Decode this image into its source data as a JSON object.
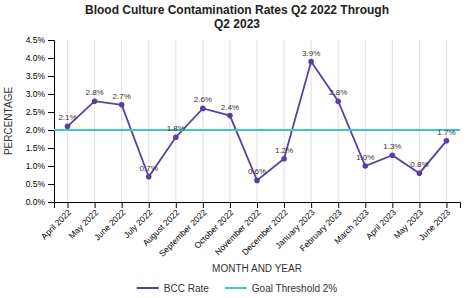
{
  "chart_data": {
    "type": "line",
    "title": "Blood Culture Contamination Rates Q2 2022 Through\nQ2 2023",
    "x_label": "MONTH AND YEAR",
    "y_label": "PERCENTAGE",
    "categories": [
      "April 2022",
      "May 2022",
      "June 2022",
      "July 2022",
      "August 2022",
      "September 2022",
      "October 2022",
      "November 2022",
      "December 2022",
      "January 2023",
      "February 2023",
      "March 2023",
      "April 2023",
      "May 2023",
      "June 2023"
    ],
    "series": [
      {
        "name": "BCC Rate",
        "color": "#5B3FA0",
        "marker": "circle",
        "values": [
          2.1,
          2.8,
          2.7,
          0.7,
          1.8,
          2.6,
          2.4,
          0.6,
          1.2,
          3.9,
          2.8,
          1.0,
          1.3,
          0.8,
          1.7
        ],
        "value_labels": [
          "2.1%",
          "2.8%",
          "2.7%",
          "0.7%",
          "1.8%",
          "2.6%",
          "2.4%",
          "0.6%",
          "1.2%",
          "3.9%",
          "2.8%",
          "1.0%",
          "1.3%",
          "0.8%",
          "1.7%"
        ]
      },
      {
        "name": "Goal Threshold 2%",
        "color": "#40C8C8",
        "type": "hline",
        "value": 2.0
      }
    ],
    "ylim": [
      0.0,
      4.5
    ],
    "yticks": [
      {
        "value": 0.0,
        "label": "0.0%"
      },
      {
        "value": 0.5,
        "label": "0.5%"
      },
      {
        "value": 1.0,
        "label": "1.0%"
      },
      {
        "value": 1.5,
        "label": "1.5%"
      },
      {
        "value": 2.0,
        "label": "2.0%"
      },
      {
        "value": 2.5,
        "label": "2.5%"
      },
      {
        "value": 3.0,
        "label": "3.0%"
      },
      {
        "value": 3.5,
        "label": "3.5%"
      },
      {
        "value": 4.0,
        "label": "4.0%"
      },
      {
        "value": 4.5,
        "label": "4.5%"
      }
    ],
    "grid": "x",
    "legend": "bottom",
    "data_labels": true
  }
}
